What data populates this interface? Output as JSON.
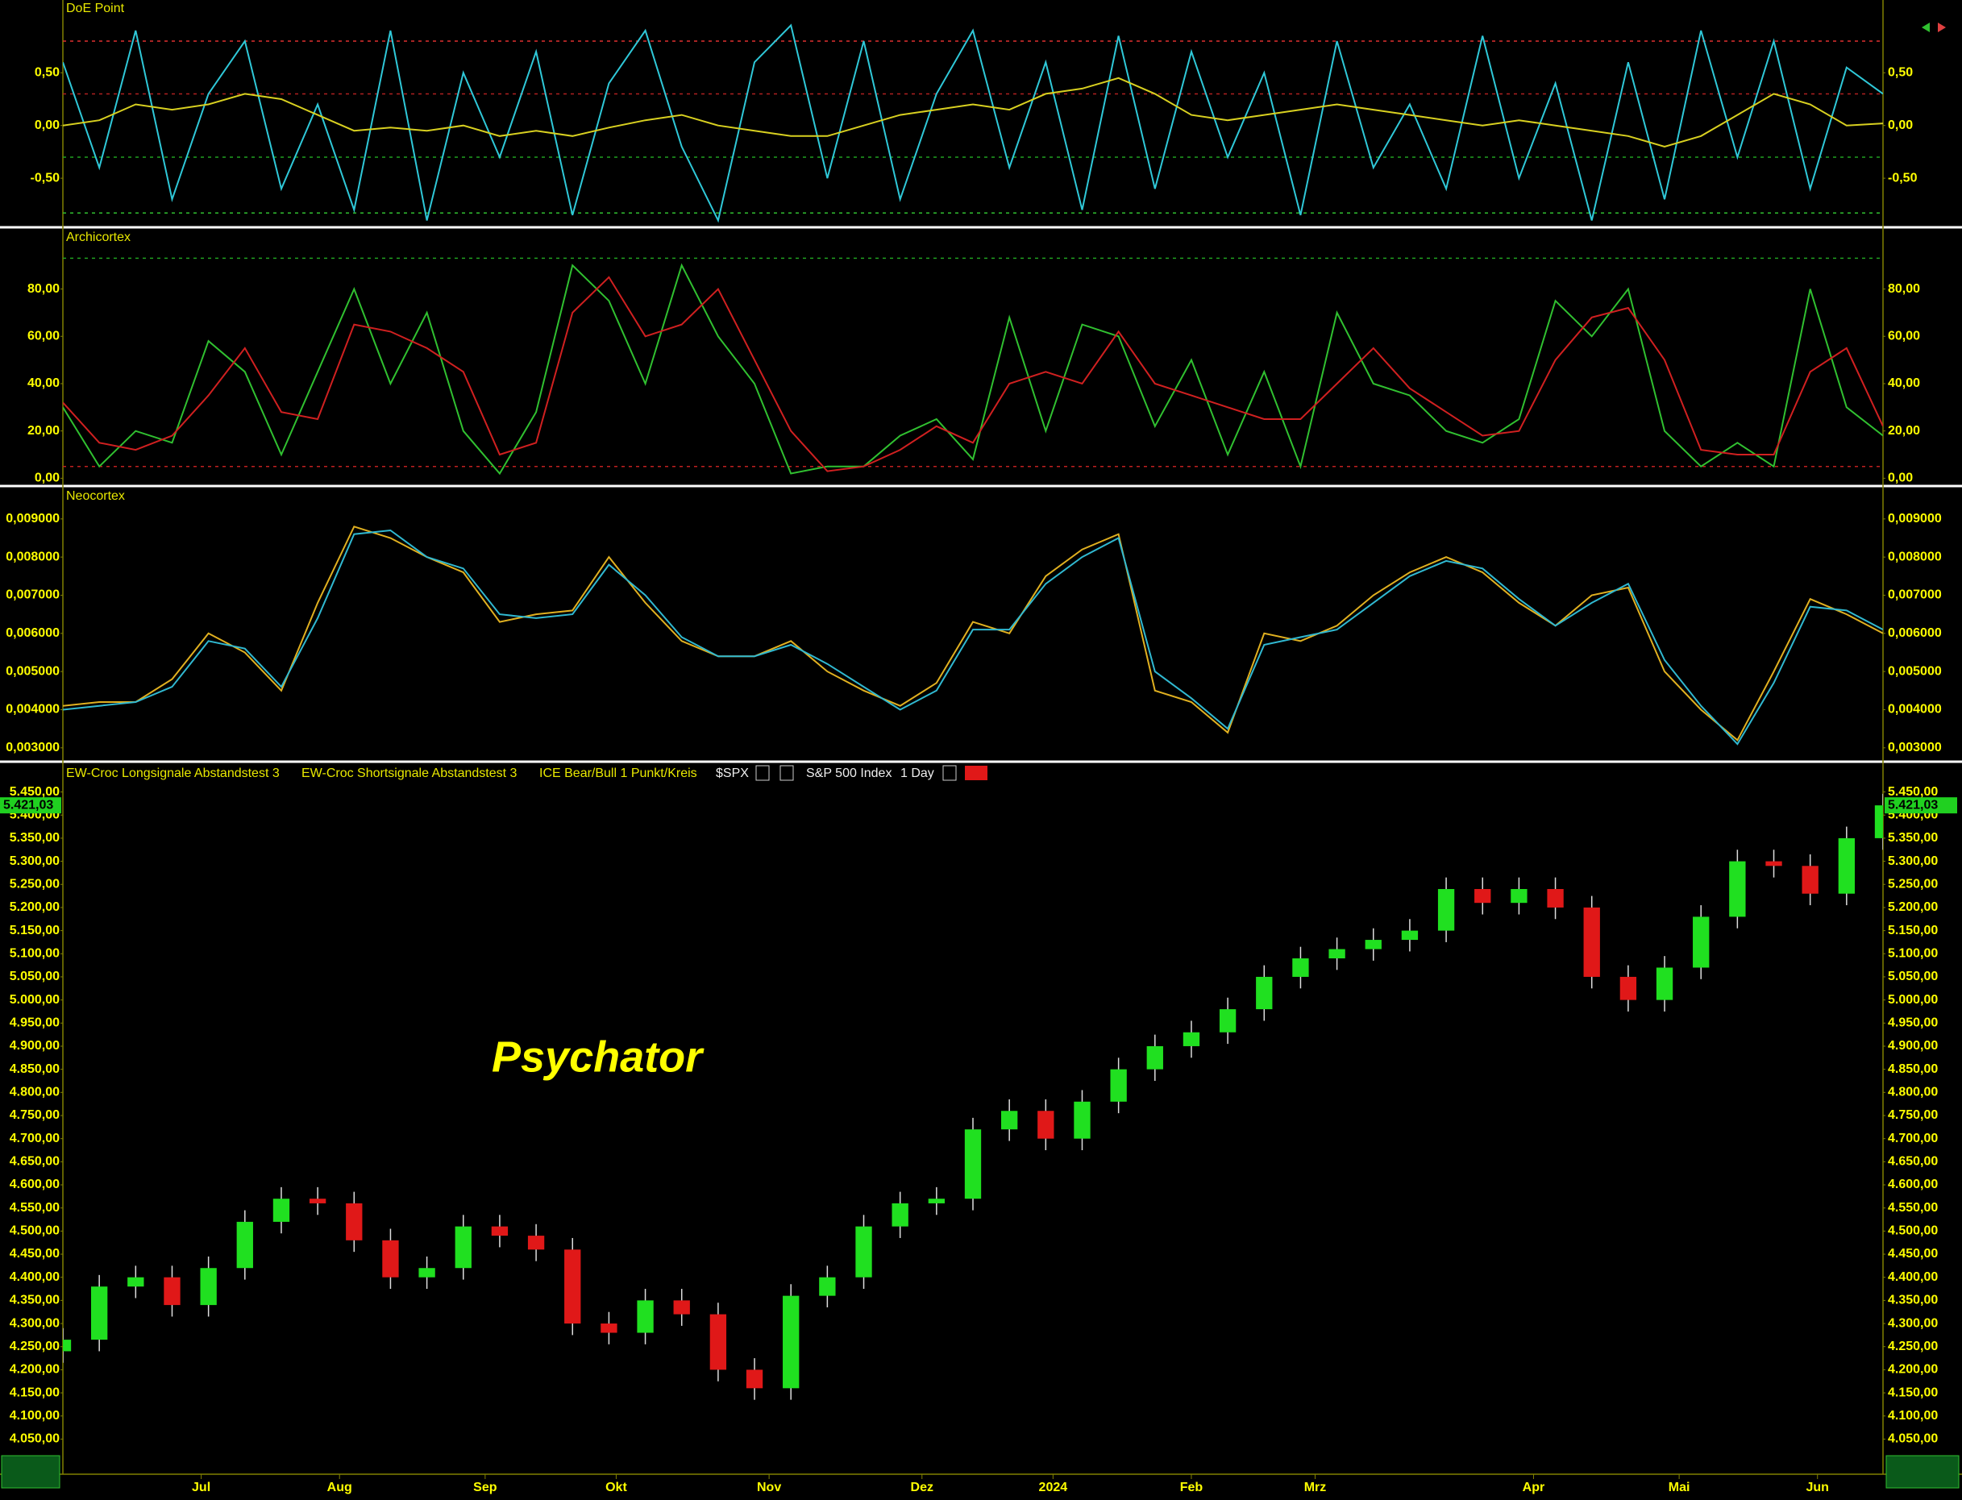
{
  "chart_data": [
    {
      "type": "line",
      "title": "DoE Point",
      "x": [
        0,
        5,
        10,
        15,
        20,
        25,
        30,
        35,
        40,
        45,
        50,
        55,
        60,
        65,
        70,
        75,
        80,
        85,
        90,
        95,
        100,
        105,
        110,
        115,
        120,
        125,
        130,
        135,
        140,
        145,
        150,
        155,
        160,
        165,
        170,
        175,
        180,
        185,
        190,
        195,
        200,
        205,
        210,
        215,
        220,
        225,
        230,
        235,
        240,
        245,
        250
      ],
      "xlim": [
        0,
        250
      ],
      "ylim": [
        -0.95,
        1.19
      ],
      "yticks": [
        {
          "value": -0.5,
          "label": "-0,50"
        },
        {
          "value": 0,
          "label": "0,00"
        },
        {
          "value": 0.5,
          "label": "0,50"
        }
      ],
      "levels": [
        {
          "value": 0.8,
          "color": "#e03030"
        },
        {
          "value": 0.3,
          "color": "#b02020"
        },
        {
          "value": -0.3,
          "color": "#20a020"
        },
        {
          "value": -0.83,
          "color": "#30c030"
        }
      ],
      "series": [
        {
          "color": "#2fc8d8",
          "values": [
            0.6,
            -0.4,
            0.9,
            -0.7,
            0.3,
            0.8,
            -0.6,
            0.2,
            -0.8,
            0.9,
            -0.9,
            0.5,
            -0.3,
            0.7,
            -0.85,
            0.4,
            0.9,
            -0.2,
            -0.9,
            0.6,
            0.95,
            -0.5,
            0.8,
            -0.7,
            0.3,
            0.9,
            -0.4,
            0.6,
            -0.8,
            0.85,
            -0.6,
            0.7,
            -0.3,
            0.5,
            -0.85,
            0.8,
            -0.4,
            0.2,
            -0.6,
            0.85,
            -0.5,
            0.4,
            -0.9,
            0.6,
            -0.7,
            0.9,
            -0.3,
            0.8,
            -0.6,
            0.55,
            0.3
          ]
        },
        {
          "color": "#d8d020",
          "values": [
            0.0,
            0.05,
            0.2,
            0.15,
            0.2,
            0.3,
            0.25,
            0.1,
            -0.05,
            -0.02,
            -0.05,
            0.0,
            -0.1,
            -0.05,
            -0.1,
            -0.02,
            0.05,
            0.1,
            0.0,
            -0.05,
            -0.1,
            -0.1,
            0.0,
            0.1,
            0.15,
            0.2,
            0.15,
            0.3,
            0.35,
            0.45,
            0.3,
            0.1,
            0.05,
            0.1,
            0.15,
            0.2,
            0.15,
            0.1,
            0.05,
            0.0,
            0.05,
            0.0,
            -0.05,
            -0.1,
            -0.2,
            -0.1,
            0.1,
            0.3,
            0.2,
            0.0,
            0.02
          ]
        }
      ]
    },
    {
      "type": "line",
      "title": "Archicortex",
      "x": [
        0,
        5,
        10,
        15,
        20,
        25,
        30,
        35,
        40,
        45,
        50,
        55,
        60,
        65,
        70,
        75,
        80,
        85,
        90,
        95,
        100,
        105,
        110,
        115,
        120,
        125,
        130,
        135,
        140,
        145,
        150,
        155,
        160,
        165,
        170,
        175,
        180,
        185,
        190,
        195,
        200,
        205,
        210,
        215,
        220,
        225,
        230,
        235,
        240,
        245,
        250
      ],
      "xlim": [
        0,
        250
      ],
      "ylim": [
        -2.6,
        105.4
      ],
      "yticks": [
        {
          "value": 0,
          "label": "0,00"
        },
        {
          "value": 20,
          "label": "20,00"
        },
        {
          "value": 40,
          "label": "40,00"
        },
        {
          "value": 60,
          "label": "60,00"
        },
        {
          "value": 80,
          "label": "80,00"
        }
      ],
      "levels": [
        {
          "value": 93,
          "color": "#20a020"
        },
        {
          "value": 5,
          "color": "#c02020"
        }
      ],
      "series": [
        {
          "color": "#30c030",
          "values": [
            30,
            5,
            20,
            15,
            58,
            45,
            10,
            45,
            80,
            40,
            70,
            20,
            2,
            28,
            90,
            75,
            40,
            90,
            60,
            40,
            2,
            5,
            5,
            18,
            25,
            8,
            68,
            20,
            65,
            60,
            22,
            50,
            10,
            45,
            5,
            70,
            40,
            35,
            20,
            15,
            25,
            75,
            60,
            80,
            20,
            5,
            15,
            5,
            80,
            30,
            18
          ]
        },
        {
          "color": "#d02020",
          "values": [
            32,
            15,
            12,
            18,
            35,
            55,
            28,
            25,
            65,
            62,
            55,
            45,
            10,
            15,
            70,
            85,
            60,
            65,
            80,
            50,
            20,
            3,
            5,
            12,
            22,
            15,
            40,
            45,
            40,
            62,
            40,
            35,
            30,
            25,
            25,
            40,
            55,
            38,
            28,
            18,
            20,
            50,
            68,
            72,
            50,
            12,
            10,
            10,
            45,
            55,
            22
          ]
        }
      ]
    },
    {
      "type": "line",
      "title": "Neocortex",
      "x": [
        0,
        5,
        10,
        15,
        20,
        25,
        30,
        35,
        40,
        45,
        50,
        55,
        60,
        65,
        70,
        75,
        80,
        85,
        90,
        95,
        100,
        105,
        110,
        115,
        120,
        125,
        130,
        135,
        140,
        145,
        150,
        155,
        160,
        165,
        170,
        175,
        180,
        185,
        190,
        195,
        200,
        205,
        210,
        215,
        220,
        225,
        230,
        235,
        240,
        245,
        250
      ],
      "xlim": [
        0,
        250
      ],
      "ylim": [
        0.0027,
        0.00982
      ],
      "yticks": [
        {
          "value": 0.003,
          "label": "0,003000"
        },
        {
          "value": 0.004,
          "label": "0,004000"
        },
        {
          "value": 0.005,
          "label": "0,005000"
        },
        {
          "value": 0.006,
          "label": "0,006000"
        },
        {
          "value": 0.007,
          "label": "0,007000"
        },
        {
          "value": 0.008,
          "label": "0,008000"
        },
        {
          "value": 0.009,
          "label": "0,009000"
        }
      ],
      "series": [
        {
          "color": "#e0b020",
          "values": [
            0.0041,
            0.0042,
            0.0042,
            0.0048,
            0.006,
            0.0055,
            0.0045,
            0.0068,
            0.0088,
            0.0085,
            0.008,
            0.0076,
            0.0063,
            0.0065,
            0.0066,
            0.008,
            0.0068,
            0.0058,
            0.0054,
            0.0054,
            0.0058,
            0.005,
            0.0045,
            0.0041,
            0.0047,
            0.0063,
            0.006,
            0.0075,
            0.0082,
            0.0086,
            0.0045,
            0.0042,
            0.0034,
            0.006,
            0.0058,
            0.0062,
            0.007,
            0.0076,
            0.008,
            0.0076,
            0.0068,
            0.0062,
            0.007,
            0.0072,
            0.005,
            0.004,
            0.0032,
            0.005,
            0.0069,
            0.0065,
            0.006
          ]
        },
        {
          "color": "#30b8d0",
          "values": [
            0.004,
            0.0041,
            0.0042,
            0.0046,
            0.0058,
            0.0056,
            0.0046,
            0.0064,
            0.0086,
            0.0087,
            0.008,
            0.0077,
            0.0065,
            0.0064,
            0.0065,
            0.0078,
            0.007,
            0.0059,
            0.0054,
            0.0054,
            0.0057,
            0.0052,
            0.0046,
            0.004,
            0.0045,
            0.0061,
            0.0061,
            0.0073,
            0.008,
            0.0085,
            0.005,
            0.0043,
            0.0035,
            0.0057,
            0.0059,
            0.0061,
            0.0068,
            0.0075,
            0.0079,
            0.0077,
            0.0069,
            0.0062,
            0.0068,
            0.0073,
            0.0053,
            0.0041,
            0.0031,
            0.0047,
            0.0067,
            0.0066,
            0.0061
          ]
        }
      ]
    },
    {
      "type": "candlestick",
      "legend": [
        "EW-Croc Longsignale Abstandstest 3",
        "EW-Croc Shortsignale Abstandstest 3",
        "ICE Bear/Bull 1 Punkt/Kreis"
      ],
      "symbol": "$SPX",
      "description": "S&P 500 Index",
      "interval": "1 Day",
      "watermark": "Psychator",
      "x": [
        0,
        5,
        10,
        15,
        20,
        25,
        30,
        35,
        40,
        45,
        50,
        55,
        60,
        65,
        70,
        75,
        80,
        85,
        90,
        95,
        100,
        105,
        110,
        115,
        120,
        125,
        130,
        135,
        140,
        145,
        150,
        155,
        160,
        165,
        170,
        175,
        180,
        185,
        190,
        195,
        200,
        205,
        210,
        215,
        220,
        225,
        230,
        235,
        240,
        245,
        250
      ],
      "xlim": [
        0,
        250
      ],
      "xticks": [
        {
          "value": 19,
          "label": "Jul"
        },
        {
          "value": 38,
          "label": "Aug"
        },
        {
          "value": 58,
          "label": "Sep"
        },
        {
          "value": 76,
          "label": "Okt"
        },
        {
          "value": 97,
          "label": "Nov"
        },
        {
          "value": 118,
          "label": "Dez"
        },
        {
          "value": 136,
          "label": "2024"
        },
        {
          "value": 155,
          "label": "Feb"
        },
        {
          "value": 172,
          "label": "Mrz"
        },
        {
          "value": 202,
          "label": "Apr"
        },
        {
          "value": 222,
          "label": "Mai"
        },
        {
          "value": 241,
          "label": "Jun"
        }
      ],
      "ylim": [
        3974,
        5512
      ],
      "yticks": [
        {
          "value": 4050,
          "label": "4.050,00"
        },
        {
          "value": 4100,
          "label": "4.100,00"
        },
        {
          "value": 4150,
          "label": "4.150,00"
        },
        {
          "value": 4200,
          "label": "4.200,00"
        },
        {
          "value": 4250,
          "label": "4.250,00"
        },
        {
          "value": 4300,
          "label": "4.300,00"
        },
        {
          "value": 4350,
          "label": "4.350,00"
        },
        {
          "value": 4400,
          "label": "4.400,00"
        },
        {
          "value": 4450,
          "label": "4.450,00"
        },
        {
          "value": 4500,
          "label": "4.500,00"
        },
        {
          "value": 4550,
          "label": "4.550,00"
        },
        {
          "value": 4600,
          "label": "4.600,00"
        },
        {
          "value": 4650,
          "label": "4.650,00"
        },
        {
          "value": 4700,
          "label": "4.700,00"
        },
        {
          "value": 4750,
          "label": "4.750,00"
        },
        {
          "value": 4800,
          "label": "4.800,00"
        },
        {
          "value": 4850,
          "label": "4.850,00"
        },
        {
          "value": 4900,
          "label": "4.900,00"
        },
        {
          "value": 4950,
          "label": "4.950,00"
        },
        {
          "value": 5000,
          "label": "5.000,00"
        },
        {
          "value": 5050,
          "label": "5.050,00"
        },
        {
          "value": 5100,
          "label": "5.100,00"
        },
        {
          "value": 5150,
          "label": "5.150,00"
        },
        {
          "value": 5200,
          "label": "5.200,00"
        },
        {
          "value": 5250,
          "label": "5.250,00"
        },
        {
          "value": 5300,
          "label": "5.300,00"
        },
        {
          "value": 5350,
          "label": "5.350,00"
        },
        {
          "value": 5400,
          "label": "5.400,00"
        },
        {
          "value": 5450,
          "label": "5.450,00"
        }
      ],
      "up_color": "#20e020",
      "down_color": "#e01818",
      "open": [
        4240,
        4265,
        4380,
        4400,
        4340,
        4420,
        4520,
        4570,
        4560,
        4480,
        4400,
        4420,
        4510,
        4490,
        4460,
        4300,
        4280,
        4350,
        4320,
        4200,
        4160,
        4360,
        4400,
        4510,
        4560,
        4570,
        4720,
        4760,
        4700,
        4780,
        4850,
        4900,
        4930,
        4980,
        5050,
        5090,
        5110,
        5130,
        5150,
        5240,
        5210,
        5240,
        5200,
        5050,
        5000,
        5070,
        5180,
        5300,
        5290,
        5230,
        5350
      ],
      "high": [
        4290,
        4405,
        4425,
        4425,
        4445,
        4545,
        4595,
        4595,
        4585,
        4505,
        4445,
        4535,
        4535,
        4515,
        4485,
        4325,
        4375,
        4375,
        4345,
        4225,
        4385,
        4425,
        4535,
        4585,
        4595,
        4745,
        4785,
        4785,
        4805,
        4875,
        4925,
        4955,
        5005,
        5075,
        5115,
        5135,
        5155,
        5175,
        5265,
        5265,
        5265,
        5265,
        5225,
        5075,
        5095,
        5205,
        5325,
        5325,
        5315,
        5375,
        5446
      ],
      "low": [
        4215,
        4240,
        4355,
        4315,
        4315,
        4395,
        4495,
        4535,
        4455,
        4375,
        4375,
        4395,
        4465,
        4435,
        4275,
        4255,
        4255,
        4295,
        4175,
        4135,
        4135,
        4335,
        4375,
        4485,
        4535,
        4545,
        4695,
        4675,
        4675,
        4755,
        4825,
        4875,
        4905,
        4955,
        5025,
        5065,
        5085,
        5105,
        5125,
        5185,
        5185,
        5175,
        5025,
        4975,
        4975,
        5045,
        5155,
        5265,
        5205,
        5205,
        5325
      ],
      "close": [
        4265,
        4380,
        4400,
        4340,
        4420,
        4520,
        4570,
        4560,
        4480,
        4400,
        4420,
        4510,
        4490,
        4460,
        4300,
        4280,
        4350,
        4320,
        4200,
        4160,
        4360,
        4400,
        4510,
        4560,
        4570,
        4720,
        4760,
        4700,
        4780,
        4850,
        4900,
        4930,
        4980,
        5050,
        5090,
        5110,
        5130,
        5150,
        5240,
        5210,
        5240,
        5200,
        5050,
        5000,
        5070,
        5180,
        5300,
        5290,
        5230,
        5350,
        5421
      ],
      "last_price": {
        "value": 5421.03,
        "label": "5.421,03"
      }
    }
  ]
}
